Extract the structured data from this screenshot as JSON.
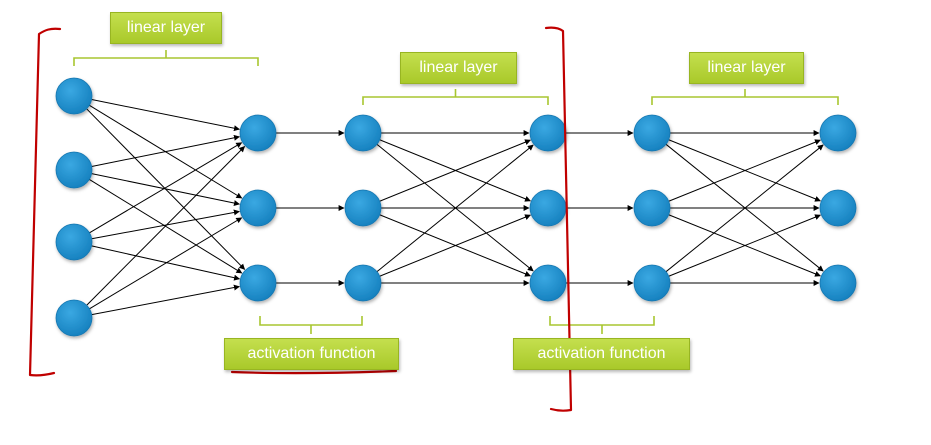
{
  "labels": {
    "linear_1": "linear layer",
    "linear_2": "linear layer",
    "linear_3": "linear layer",
    "activation_1": "activation function",
    "activation_2": "activation function"
  },
  "colors": {
    "node": "#1b8fcf",
    "label_bg": "#b7d63a",
    "bracket": "#c00000",
    "brace": "#a8c630",
    "edge": "#000000"
  }
}
